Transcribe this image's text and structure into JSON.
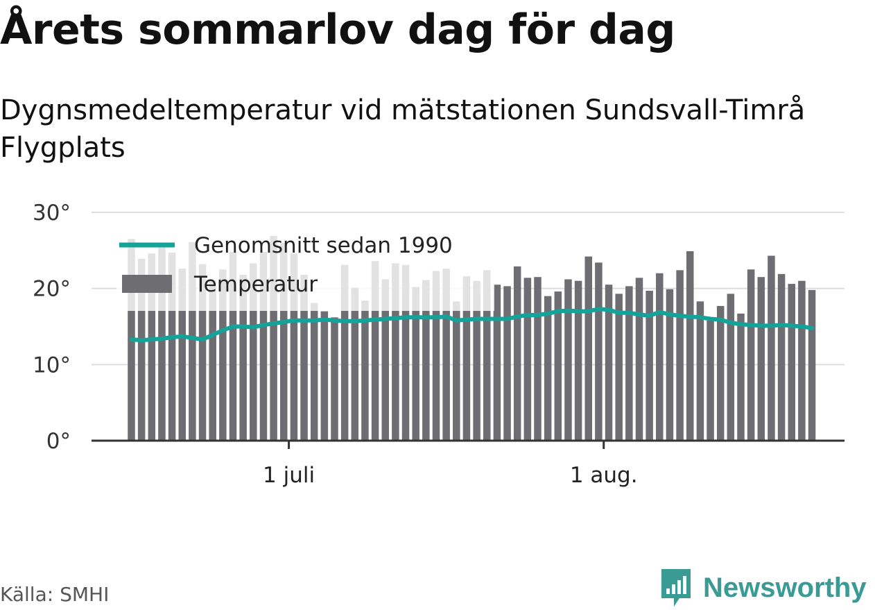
{
  "title": "Årets sommarlov dag för dag",
  "subtitle": "Dygnsmedeltemperatur vid mätstationen Sundsvall-Timrå Flygplats",
  "source": "Källa: SMHI",
  "brand": {
    "name": "Newsworthy",
    "color": "#3a9a94"
  },
  "colors": {
    "bar": "#6e6d72",
    "line": "#14a39a",
    "grid": "#dddddd",
    "axis": "#333333"
  },
  "chart_data": {
    "type": "bar",
    "start_date": "2019-06-15",
    "y_unit": "°",
    "ylim": [
      0,
      30
    ],
    "yticks": [
      "30°",
      "20°",
      "10°",
      "0°"
    ],
    "xticks": [
      {
        "label": "1 juli",
        "date": "2019-07-01"
      },
      {
        "label": "1 aug.",
        "date": "2019-08-01"
      }
    ],
    "grid": true,
    "legend_position": "top-left",
    "legend": [
      {
        "label": "Genomsnitt sedan 1990",
        "kind": "line"
      },
      {
        "label": "Temperatur",
        "kind": "bar"
      }
    ],
    "series": [
      {
        "name": "Temperatur",
        "kind": "bar",
        "values": [
          26.5,
          23.9,
          24.6,
          25.8,
          24.7,
          22.6,
          26.1,
          23.2,
          21.1,
          22.5,
          24.8,
          21.8,
          23.3,
          24.8,
          26.9,
          26.0,
          24.6,
          21.8,
          18.1,
          17.0,
          16.2,
          23.1,
          20.1,
          18.4,
          23.6,
          21.2,
          23.3,
          23.1,
          20.2,
          21.1,
          22.3,
          22.6,
          18.3,
          21.6,
          21.0,
          22.4,
          20.5,
          20.3,
          22.9,
          21.4,
          21.5,
          19.0,
          19.6,
          21.2,
          21.0,
          24.2,
          23.4,
          20.5,
          19.3,
          20.3,
          21.4,
          19.7,
          22.0,
          19.9,
          22.4,
          24.9,
          18.3,
          15.8,
          17.7,
          19.3,
          16.7,
          22.5,
          21.5,
          24.3,
          21.9,
          20.6,
          21.0,
          19.8
        ]
      },
      {
        "name": "Genomsnitt sedan 1990",
        "kind": "line",
        "values": [
          13.3,
          13.2,
          13.3,
          13.4,
          13.6,
          13.7,
          13.5,
          13.3,
          13.9,
          14.5,
          15.0,
          15.0,
          14.9,
          15.2,
          15.4,
          15.6,
          15.8,
          15.8,
          15.8,
          15.9,
          15.8,
          15.7,
          15.7,
          15.8,
          15.9,
          16.0,
          16.1,
          16.2,
          16.2,
          16.2,
          16.2,
          16.3,
          15.8,
          15.9,
          16.0,
          16.0,
          16.0,
          16.0,
          16.3,
          16.5,
          16.5,
          16.7,
          17.0,
          17.1,
          17.0,
          17.0,
          17.3,
          17.2,
          16.8,
          16.8,
          16.6,
          16.4,
          16.9,
          16.6,
          16.4,
          16.3,
          16.2,
          16.0,
          15.9,
          15.5,
          15.3,
          15.2,
          15.1,
          15.1,
          15.2,
          15.1,
          15.0,
          14.8
        ]
      }
    ]
  }
}
